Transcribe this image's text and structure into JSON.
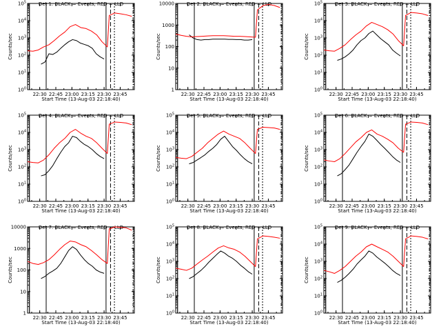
{
  "chart_data": [
    {
      "type": "line",
      "title": "Det 1: BLACK = Events, RED = LLD",
      "xlabel": "Start Time (13-Aug-03 22:18:40)",
      "ylabel": "Counts/sec",
      "x_tick_labels": [
        "22:30",
        "22:45",
        "23:00",
        "23:15",
        "23:30",
        "23:45"
      ],
      "y_scale": "log",
      "y_tick_labels": [
        "10^0",
        "10^1",
        "10^2",
        "10^3",
        "10^4",
        "10^5"
      ],
      "ylim": [
        1,
        100000
      ],
      "series": [
        {
          "name": "Events",
          "color": "#000000",
          "values": [
            30,
            40,
            120,
            110,
            150,
            250,
            400,
            600,
            800,
            700,
            500,
            420,
            350,
            250,
            120,
            80,
            60
          ]
        },
        {
          "name": "LLD",
          "color": "#ff0000",
          "values": [
            180,
            170,
            200,
            300,
            400,
            700,
            1300,
            2200,
            4500,
            6000,
            4000,
            3500,
            2500,
            1500,
            600,
            300,
            20000,
            28000,
            25000,
            22000,
            18000
          ]
        }
      ]
    },
    {
      "type": "line",
      "title": "Det 2: BLACK = Events, RED = LLD",
      "xlabel": "Start Time (13-Aug-03 22:18:40)",
      "ylabel": "Counts/sec",
      "x_tick_labels": [
        "22:30",
        "22:45",
        "23:00",
        "23:15",
        "23:30",
        "23:45"
      ],
      "y_scale": "log",
      "y_tick_labels": [
        "1",
        "10",
        "100",
        "1000",
        "10000"
      ],
      "ylim": [
        1,
        10000
      ],
      "series": [
        {
          "name": "Events",
          "color": "#000000",
          "values": [
            350,
            250,
            210,
            200,
            210,
            210,
            220,
            220,
            220,
            220,
            215,
            215,
            210,
            210,
            200,
            200,
            210
          ]
        },
        {
          "name": "LLD",
          "color": "#ff0000",
          "values": [
            380,
            330,
            300,
            280,
            290,
            300,
            310,
            320,
            320,
            320,
            310,
            300,
            300,
            290,
            280,
            270,
            5000,
            8000,
            9000,
            8000,
            6500
          ]
        }
      ]
    },
    {
      "type": "line",
      "title": "Det 3: BLACK = Events, RED = LLD",
      "xlabel": "Start Time (13-Aug-03 22:18:40)",
      "ylabel": "Counts/sec",
      "x_tick_labels": [
        "22:30",
        "22:45",
        "23:00",
        "23:15",
        "23:30",
        "23:45"
      ],
      "y_scale": "log",
      "y_tick_labels": [
        "10^0",
        "10^1",
        "10^2",
        "10^3",
        "10^4",
        "10^5"
      ],
      "ylim": [
        1,
        100000
      ],
      "series": [
        {
          "name": "Events",
          "color": "#000000",
          "values": [
            50,
            60,
            80,
            120,
            200,
            400,
            700,
            1000,
            1800,
            2500,
            1500,
            900,
            600,
            400,
            200,
            130,
            90
          ]
        },
        {
          "name": "LLD",
          "color": "#ff0000",
          "values": [
            200,
            180,
            170,
            250,
            400,
            800,
            1500,
            2500,
            5000,
            8000,
            6000,
            4500,
            3000,
            1700,
            700,
            350,
            20000,
            30000,
            28000,
            25000,
            20000
          ]
        }
      ]
    },
    {
      "type": "line",
      "title": "Det 4: BLACK = Events, RED = LLD",
      "xlabel": "Start Time (13-Aug-03 22:18:40)",
      "ylabel": "Counts/sec",
      "x_tick_labels": [
        "22:30",
        "22:45",
        "23:00",
        "23:15",
        "23:30",
        "23:45"
      ],
      "y_scale": "log",
      "y_tick_labels": [
        "10^0",
        "10^1",
        "10^2",
        "10^3",
        "10^4",
        "10^5"
      ],
      "ylim": [
        1,
        100000
      ],
      "series": [
        {
          "name": "Events",
          "color": "#000000",
          "values": [
            30,
            35,
            60,
            120,
            300,
            700,
            1500,
            2500,
            6000,
            5000,
            3000,
            2000,
            1500,
            1000,
            600,
            400,
            300
          ]
        },
        {
          "name": "LLD",
          "color": "#ff0000",
          "values": [
            200,
            180,
            170,
            250,
            500,
            1200,
            2500,
            4500,
            10000,
            15000,
            9000,
            6000,
            4500,
            2500,
            1200,
            600,
            30000,
            40000,
            38000,
            35000,
            28000
          ]
        }
      ]
    },
    {
      "type": "line",
      "title": "Det 5: BLACK = Events, RED = LLD",
      "xlabel": "Start Time (13-Aug-03 22:18:40)",
      "ylabel": "Counts/sec",
      "x_tick_labels": [
        "22:30",
        "22:45",
        "23:00",
        "23:15",
        "23:30",
        "23:45"
      ],
      "y_scale": "log",
      "y_tick_labels": [
        "10^0",
        "10^1",
        "10^2",
        "10^3",
        "10^4",
        "10^5"
      ],
      "ylim": [
        1,
        100000
      ],
      "series": [
        {
          "name": "Events",
          "color": "#000000",
          "values": [
            150,
            180,
            250,
            350,
            500,
            800,
            1200,
            2000,
            4000,
            6000,
            3000,
            1500,
            900,
            500,
            300,
            200,
            150
          ]
        },
        {
          "name": "LLD",
          "color": "#ff0000",
          "values": [
            350,
            320,
            300,
            400,
            700,
            1200,
            2500,
            4500,
            8000,
            12000,
            8000,
            6000,
            4500,
            2500,
            1200,
            600,
            15000,
            20000,
            19000,
            18000,
            15000
          ]
        }
      ]
    },
    {
      "type": "line",
      "title": "Det 6: BLACK = Events, RED = LLD",
      "xlabel": "Start Time (13-Aug-03 22:18:40)",
      "ylabel": "Counts/sec",
      "x_tick_labels": [
        "22:30",
        "22:45",
        "23:00",
        "23:15",
        "23:30",
        "23:45"
      ],
      "y_scale": "log",
      "y_tick_labels": [
        "10^0",
        "10^1",
        "10^2",
        "10^3",
        "10^4",
        "10^5"
      ],
      "ylim": [
        1,
        100000
      ],
      "series": [
        {
          "name": "Events",
          "color": "#000000",
          "values": [
            30,
            40,
            70,
            130,
            300,
            700,
            1500,
            3000,
            8000,
            6000,
            3500,
            2000,
            1200,
            700,
            400,
            250,
            180
          ]
        },
        {
          "name": "LLD",
          "color": "#ff0000",
          "values": [
            250,
            220,
            200,
            300,
            600,
            1300,
            2800,
            5000,
            10000,
            14000,
            8000,
            6000,
            4000,
            2500,
            1200,
            700,
            30000,
            40000,
            38000,
            35000,
            28000
          ]
        }
      ]
    },
    {
      "type": "line",
      "title": "Det 7: BLACK = Events, RED = LLD",
      "xlabel": "Start Time (13-Aug-03 22:18:40)",
      "ylabel": "Counts/sec",
      "x_tick_labels": [
        "22:30",
        "22:45",
        "23:00",
        "23:15",
        "23:30",
        "23:45"
      ],
      "y_scale": "log",
      "y_tick_labels": [
        "1",
        "10",
        "100",
        "1000",
        "10000"
      ],
      "ylim": [
        1,
        10000
      ],
      "series": [
        {
          "name": "Events",
          "color": "#000000",
          "values": [
            40,
            50,
            70,
            90,
            120,
            200,
            400,
            800,
            1200,
            900,
            500,
            300,
            200,
            150,
            100,
            80,
            70
          ]
        },
        {
          "name": "LLD",
          "color": "#ff0000",
          "values": [
            250,
            200,
            180,
            220,
            300,
            500,
            900,
            1500,
            2200,
            2000,
            1500,
            1200,
            800,
            500,
            300,
            200,
            8000,
            10000,
            9500,
            9000,
            7000
          ]
        }
      ]
    },
    {
      "type": "line",
      "title": "Det 8: BLACK = Events, RED = LLD",
      "xlabel": "Start Time (13-Aug-03 22:18:40)",
      "ylabel": "Counts/sec",
      "x_tick_labels": [
        "22:30",
        "22:45",
        "23:00",
        "23:15",
        "23:30",
        "23:45"
      ],
      "y_scale": "log",
      "y_tick_labels": [
        "10^0",
        "10^1",
        "10^2",
        "10^3",
        "10^4",
        "10^5"
      ],
      "ylim": [
        1,
        100000
      ],
      "series": [
        {
          "name": "Events",
          "color": "#000000",
          "values": [
            100,
            130,
            200,
            300,
            500,
            900,
            1500,
            2500,
            4000,
            3000,
            2000,
            1500,
            1000,
            600,
            400,
            250,
            180
          ]
        },
        {
          "name": "LLD",
          "color": "#ff0000",
          "values": [
            400,
            350,
            300,
            400,
            700,
            1200,
            2000,
            3500,
            6000,
            8000,
            6000,
            5000,
            3500,
            2000,
            1000,
            500,
            20000,
            30000,
            28000,
            25000,
            22000
          ]
        }
      ]
    },
    {
      "type": "line",
      "title": "Det 9: BLACK = Events, RED = LLD",
      "xlabel": "Start Time (13-Aug-03 22:18:40)",
      "ylabel": "Counts/sec",
      "x_tick_labels": [
        "22:30",
        "22:45",
        "23:00",
        "23:15",
        "23:30",
        "23:45"
      ],
      "y_scale": "log",
      "y_tick_labels": [
        "10^0",
        "10^1",
        "10^2",
        "10^3",
        "10^4",
        "10^5"
      ],
      "ylim": [
        1,
        100000
      ],
      "series": [
        {
          "name": "Events",
          "color": "#000000",
          "values": [
            60,
            80,
            120,
            200,
            350,
            700,
            1200,
            2000,
            4000,
            3000,
            1800,
            1200,
            800,
            500,
            300,
            200,
            150
          ]
        },
        {
          "name": "LLD",
          "color": "#ff0000",
          "values": [
            300,
            250,
            200,
            300,
            500,
            1000,
            2000,
            3500,
            7000,
            10000,
            7000,
            5000,
            3500,
            2000,
            1000,
            500,
            20000,
            30000,
            28000,
            25000,
            20000
          ]
        }
      ]
    }
  ]
}
